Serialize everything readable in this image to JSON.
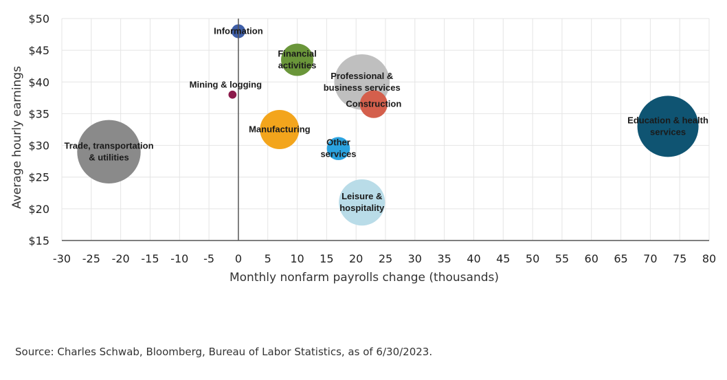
{
  "chart_data": {
    "type": "scatter",
    "xlabel": "Monthly nonfarm payrolls change (thousands)",
    "ylabel": "Average hourly earnings",
    "xlim": [
      -30,
      80
    ],
    "ylim": [
      15,
      50
    ],
    "x_ticks": [
      -30,
      -25,
      -20,
      -15,
      -10,
      -5,
      0,
      5,
      10,
      15,
      20,
      25,
      30,
      35,
      40,
      45,
      50,
      55,
      60,
      65,
      70,
      75,
      80
    ],
    "y_ticks": [
      15,
      20,
      25,
      30,
      35,
      40,
      45,
      50
    ],
    "y_tick_labels": [
      "$15",
      "$20",
      "$25",
      "$30",
      "$35",
      "$40",
      "$45",
      "$50"
    ],
    "grid": true,
    "series": [
      {
        "label_lines": [
          "Information"
        ],
        "x": 0,
        "y": 48,
        "size": 1.2,
        "color": "#3f5fa8"
      },
      {
        "label_lines": [
          "Financial",
          "activities"
        ],
        "x": 10,
        "y": 43.5,
        "size": 2.8,
        "color": "#6a963a"
      },
      {
        "label_lines": [
          "Mining & logging"
        ],
        "x": -1,
        "y": 38,
        "size": 0.7,
        "color": "#8b1a4a"
      },
      {
        "label_lines": [
          "Professional &",
          "business services"
        ],
        "x": 21,
        "y": 40,
        "size": 4.8,
        "color": "#bfbfbf"
      },
      {
        "label_lines": [
          "Construction"
        ],
        "x": 23,
        "y": 36.5,
        "size": 2.4,
        "color": "#d45f4c"
      },
      {
        "label_lines": [
          "Manufacturing"
        ],
        "x": 7,
        "y": 32.5,
        "size": 3.4,
        "color": "#f3a51c"
      },
      {
        "label_lines": [
          "Other",
          "services"
        ],
        "x": 17,
        "y": 29.5,
        "size": 2.0,
        "color": "#2ba3e0"
      },
      {
        "label_lines": [
          "Trade, transportation",
          "& utilities"
        ],
        "x": -22,
        "y": 29,
        "size": 5.5,
        "color": "#8a8a8a"
      },
      {
        "label_lines": [
          "Education & health",
          "services"
        ],
        "x": 73,
        "y": 33,
        "size": 5.3,
        "color": "#0f5472"
      },
      {
        "label_lines": [
          "Leisure &",
          "hospitality"
        ],
        "x": 21,
        "y": 21,
        "size": 4.0,
        "color": "#b9dce8"
      }
    ]
  },
  "source": "Source: Charles Schwab, Bloomberg, Bureau of Labor Statistics, as of 6/30/2023."
}
